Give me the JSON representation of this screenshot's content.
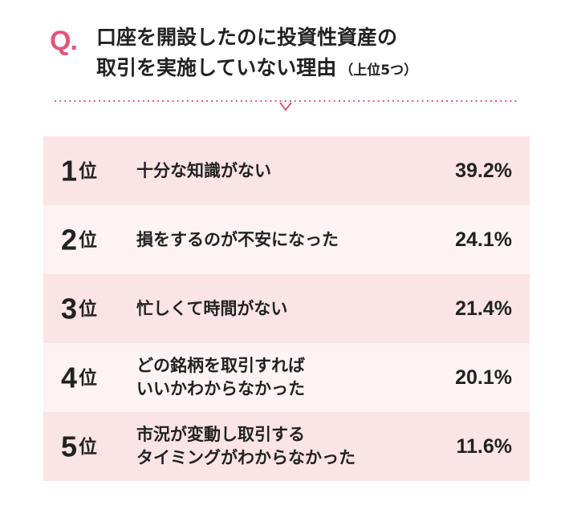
{
  "header": {
    "q_mark": "Q.",
    "title_line1": "口座を開設したのに投資性資産の",
    "title_line2": "取引を実施していない理由",
    "title_sub": "（上位5つ）"
  },
  "colors": {
    "accent": "#e2557a",
    "row_odd": "#fbe4e6",
    "row_even": "#fdf3f3",
    "text": "#222222"
  },
  "chart_data": {
    "type": "table",
    "title": "口座を開設したのに投資性資産の取引を実施していない理由（上位5つ）",
    "rank_unit": "位",
    "rows": [
      {
        "rank": "1",
        "reason_lines": [
          "十分な知識がない"
        ],
        "value": 39.2,
        "label": "39.2%"
      },
      {
        "rank": "2",
        "reason_lines": [
          "損をするのが不安になった"
        ],
        "value": 24.1,
        "label": "24.1%"
      },
      {
        "rank": "3",
        "reason_lines": [
          "忙しくて時間がない"
        ],
        "value": 21.4,
        "label": "21.4%"
      },
      {
        "rank": "4",
        "reason_lines": [
          "どの銘柄を取引すれば",
          "いいかわからなかった"
        ],
        "value": 20.1,
        "label": "20.1%"
      },
      {
        "rank": "5",
        "reason_lines": [
          "市況が変動し取引する",
          "タイミングがわからなかった"
        ],
        "value": 11.6,
        "label": "11.6%"
      }
    ]
  }
}
